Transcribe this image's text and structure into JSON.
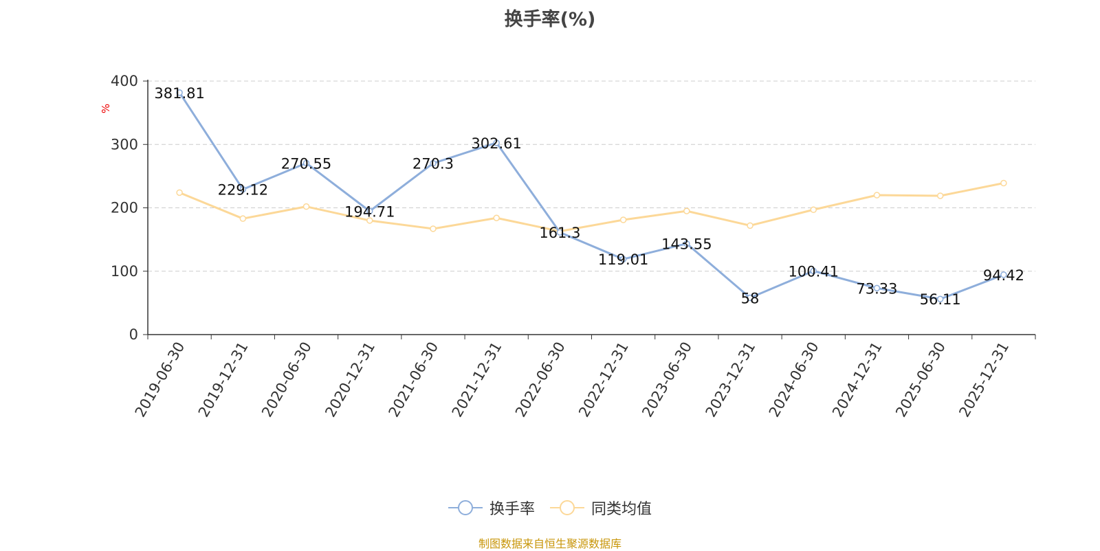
{
  "chart_data": {
    "type": "line",
    "title": "换手率(%)",
    "ylabel": "%",
    "ylim": [
      0,
      400
    ],
    "yticks": [
      "0",
      "100",
      "200",
      "300",
      "400"
    ],
    "grid": true,
    "legend_position": "bottom-center",
    "categories": [
      "2019-06-30",
      "2019-12-31",
      "2020-06-30",
      "2020-12-31",
      "2021-06-30",
      "2021-12-31",
      "2022-06-30",
      "2022-12-31",
      "2023-06-30",
      "2023-12-31",
      "2024-06-30",
      "2024-12-31",
      "2025-06-30",
      "2025-12-31"
    ],
    "series": [
      {
        "name": "换手率",
        "color": "#8eaedb",
        "values": [
          381.81,
          229.12,
          270.55,
          194.71,
          270.3,
          302.61,
          161.3,
          119.01,
          143.55,
          58,
          100.41,
          73.33,
          56.11,
          94.42
        ],
        "data_labels": [
          "381.81",
          "229.12",
          "270.55",
          "194.71",
          "270.3",
          "302.61",
          "161.3",
          "119.01",
          "143.55",
          "58",
          "100.41",
          "73.33",
          "56.11",
          "94.42"
        ]
      },
      {
        "name": "同类均值",
        "color": "#fcd898",
        "values": [
          224,
          183,
          202,
          180,
          167,
          184,
          163,
          181,
          195,
          172,
          197,
          220,
          219,
          239
        ]
      }
    ]
  },
  "source": "制图数据来自恒生聚源数据库"
}
